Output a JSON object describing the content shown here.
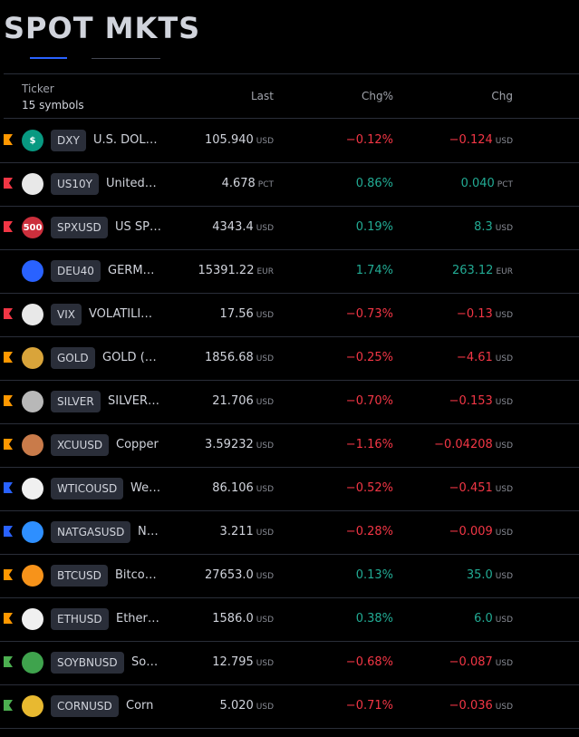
{
  "header": {
    "title": "SPOT MKTS"
  },
  "columns": {
    "ticker": "Ticker",
    "count": "15 symbols",
    "last": "Last",
    "chg_pct": "Chg%",
    "chg": "Chg"
  },
  "rows": [
    {
      "flag": "#ff9800",
      "icon_color": "#089981",
      "icon_text": "$",
      "ticker": "DXY",
      "name": "U.S. DOL…",
      "last": "105.940",
      "last_unit": "USD",
      "chg_pct": "−0.12%",
      "chg": "−0.124",
      "chg_unit": "USD"
    },
    {
      "flag": "#f23645",
      "icon_color": "#e8e8e8",
      "ticker": "US10Y",
      "name": "United…",
      "last": "4.678",
      "last_unit": "PCT",
      "chg_pct": "0.86%",
      "chg": "0.040",
      "chg_unit": "PCT"
    },
    {
      "flag": "#f23645",
      "icon_color": "#cc2f3c",
      "icon_text": "500",
      "ticker": "SPXUSD",
      "name": "US SP…",
      "last": "4343.4",
      "last_unit": "USD",
      "chg_pct": "0.19%",
      "chg": "8.3",
      "chg_unit": "USD"
    },
    {
      "icon_color": "#2962ff",
      "ticker": "DEU40",
      "name": "GERM…",
      "last": "15391.22",
      "last_unit": "EUR",
      "chg_pct": "1.74%",
      "chg": "263.12",
      "chg_unit": "EUR"
    },
    {
      "flag": "#f23645",
      "icon_color": "#e8e8e8",
      "ticker": "VIX",
      "name": "VOLATILI…",
      "last": "17.56",
      "last_unit": "USD",
      "chg_pct": "−0.73%",
      "chg": "−0.13",
      "chg_unit": "USD"
    },
    {
      "flag": "#ff9800",
      "icon_color": "#d9a43a",
      "ticker": "GOLD",
      "name": "GOLD (…",
      "last": "1856.68",
      "last_unit": "USD",
      "chg_pct": "−0.25%",
      "chg": "−4.61",
      "chg_unit": "USD"
    },
    {
      "flag": "#ff9800",
      "icon_color": "#b8b8b8",
      "ticker": "SILVER",
      "name": "SILVER…",
      "last": "21.706",
      "last_unit": "USD",
      "chg_pct": "−0.70%",
      "chg": "−0.153",
      "chg_unit": "USD"
    },
    {
      "flag": "#ff9800",
      "icon_color": "#c97b4a",
      "ticker": "XCUUSD",
      "name": "Copper",
      "last": "3.59232",
      "last_unit": "USD",
      "chg_pct": "−1.16%",
      "chg": "−0.04208",
      "chg_unit": "USD"
    },
    {
      "flag": "#2962ff",
      "icon_color": "#f0f0f0",
      "ticker": "WTICOUSD",
      "name": "We…",
      "last": "86.106",
      "last_unit": "USD",
      "chg_pct": "−0.52%",
      "chg": "−0.451",
      "chg_unit": "USD"
    },
    {
      "flag": "#2962ff",
      "icon_color": "#2e8fff",
      "ticker": "NATGASUSD",
      "name": "N…",
      "last": "3.211",
      "last_unit": "USD",
      "chg_pct": "−0.28%",
      "chg": "−0.009",
      "chg_unit": "USD"
    },
    {
      "flag": "#ff9800",
      "icon_color": "#f7931a",
      "ticker": "BTCUSD",
      "name": "Bitco…",
      "last": "27653.0",
      "last_unit": "USD",
      "chg_pct": "0.13%",
      "chg": "35.0",
      "chg_unit": "USD"
    },
    {
      "flag": "#ff9800",
      "icon_color": "#f0f0f0",
      "ticker": "ETHUSD",
      "name": "Ether…",
      "last": "1586.0",
      "last_unit": "USD",
      "chg_pct": "0.38%",
      "chg": "6.0",
      "chg_unit": "USD"
    },
    {
      "flag": "#4caf50",
      "icon_color": "#3fa34d",
      "ticker": "SOYBNUSD",
      "name": "So…",
      "last": "12.795",
      "last_unit": "USD",
      "chg_pct": "−0.68%",
      "chg": "−0.087",
      "chg_unit": "USD"
    },
    {
      "flag": "#4caf50",
      "icon_color": "#e8b930",
      "ticker": "CORNUSD",
      "name": "Corn",
      "last": "5.020",
      "last_unit": "USD",
      "chg_pct": "−0.71%",
      "chg": "−0.036",
      "chg_unit": "USD"
    }
  ]
}
